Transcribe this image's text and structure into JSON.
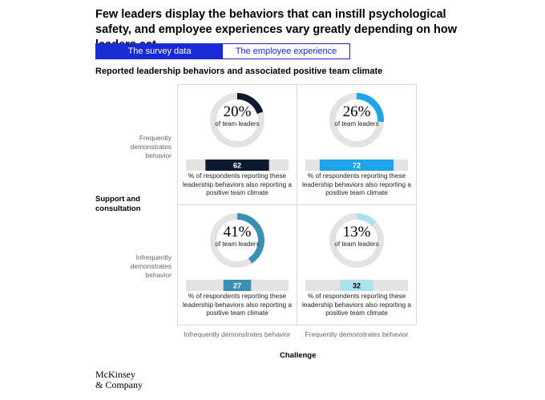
{
  "headline": "Few leaders display the behaviors that can instill psychological safety, and employee experiences vary greatly depending on how leaders act.",
  "tabs": [
    {
      "label": "The survey data",
      "active": true
    },
    {
      "label": "The employee experience",
      "active": false
    }
  ],
  "subtitle": "Reported leadership behaviors and associated positive team climate",
  "y_axis": {
    "title": "Support and consultation",
    "rows": [
      "Frequently demonstrates behavior",
      "Infrequently demonstrates behavior"
    ]
  },
  "x_axis": {
    "title": "Challenge",
    "cols": [
      "Infrequently demonstrates behavior",
      "Frequently demonstrates behavior"
    ]
  },
  "ring_caption": "of team leaders",
  "bar_caption": "% of respondents reporting these leadership behaviors also reporting a positive team climate",
  "logo": {
    "line1": "McKinsey",
    "line2": "& Company"
  },
  "colors": {
    "accent": "#1a2bd6",
    "track": "#e3e3e3"
  },
  "chart_data": {
    "type": "quadrant",
    "bar_scale": [
      0,
      100
    ],
    "quadrants": [
      {
        "support": "Frequently demonstrates behavior",
        "challenge": "Infrequently demonstrates behavior",
        "leaders_pct": 20,
        "leaders_label": "20%",
        "climate_pct": 62,
        "climate_label": "62",
        "color": "#0b1a2e"
      },
      {
        "support": "Frequently demonstrates behavior",
        "challenge": "Frequently demonstrates behavior",
        "leaders_pct": 26,
        "leaders_label": "26%",
        "climate_pct": 72,
        "climate_label": "72",
        "color": "#1fa4eb"
      },
      {
        "support": "Infrequently demonstrates behavior",
        "challenge": "Infrequently demonstrates behavior",
        "leaders_pct": 41,
        "leaders_label": "41%",
        "climate_pct": 27,
        "climate_label": "27",
        "color": "#3c8fb3"
      },
      {
        "support": "Infrequently demonstrates behavior",
        "challenge": "Frequently demonstrates behavior",
        "leaders_pct": 13,
        "leaders_label": "13%",
        "climate_pct": 32,
        "climate_label": "32",
        "color": "#ace2f0"
      }
    ]
  }
}
